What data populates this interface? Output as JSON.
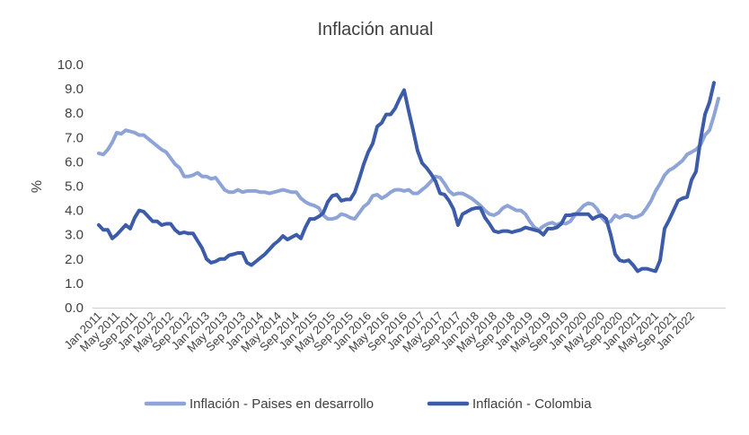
{
  "chart_data": {
    "type": "line",
    "title": "Inflación anual",
    "xlabel": "",
    "ylabel": "%",
    "ylim": [
      0,
      10
    ],
    "y_ticks": [
      "0.0",
      "1.0",
      "2.0",
      "3.0",
      "4.0",
      "5.0",
      "6.0",
      "7.0",
      "8.0",
      "9.0",
      "10.0"
    ],
    "x_tick_labels": [
      "Jan 2011",
      "May 2011",
      "Sep 2011",
      "Jan 2012",
      "May 2012",
      "Sep 2012",
      "Jan 2013",
      "May 2013",
      "Sep 2013",
      "Jan 2014",
      "May 2014",
      "Sep 2014",
      "Jan 2015",
      "May 2015",
      "Sep 2015",
      "Jan 2016",
      "May 2016",
      "Sep 2016",
      "Jan 2017",
      "May 2017",
      "Sep 2017",
      "Jan 2018",
      "May 2018",
      "Sep 2018",
      "Jan 2019",
      "May 2019",
      "Sep 2019",
      "Jan 2020",
      "May 2020",
      "Sep 2020",
      "Jan 2021",
      "May 2021",
      "Sep 2021",
      "Jan 2022"
    ],
    "x_start": "Jan 2011",
    "x_end": "Apr 2022",
    "grid": false,
    "legend_position": "bottom",
    "series": [
      {
        "name": "Inflación - Paises en desarrollo",
        "color": "#8FA4D6",
        "values": [
          6.35,
          6.3,
          6.5,
          6.8,
          7.2,
          7.15,
          7.3,
          7.25,
          7.2,
          7.1,
          7.1,
          6.95,
          6.8,
          6.65,
          6.5,
          6.4,
          6.15,
          5.9,
          5.75,
          5.4,
          5.4,
          5.45,
          5.55,
          5.4,
          5.4,
          5.3,
          5.35,
          5.1,
          4.85,
          4.75,
          4.75,
          4.85,
          4.75,
          4.8,
          4.8,
          4.8,
          4.75,
          4.75,
          4.7,
          4.75,
          4.8,
          4.85,
          4.8,
          4.75,
          4.75,
          4.5,
          4.35,
          4.25,
          4.2,
          4.1,
          3.8,
          3.65,
          3.65,
          3.7,
          3.85,
          3.8,
          3.7,
          3.65,
          3.9,
          4.15,
          4.3,
          4.6,
          4.65,
          4.5,
          4.6,
          4.75,
          4.85,
          4.85,
          4.8,
          4.85,
          4.7,
          4.7,
          4.85,
          5.0,
          5.2,
          5.4,
          5.35,
          5.1,
          4.8,
          4.65,
          4.7,
          4.7,
          4.6,
          4.5,
          4.35,
          4.2,
          4.0,
          3.85,
          3.8,
          3.9,
          4.1,
          4.2,
          4.1,
          4.0,
          4.0,
          3.85,
          3.55,
          3.3,
          3.2,
          3.35,
          3.45,
          3.5,
          3.4,
          3.5,
          3.45,
          3.55,
          3.8,
          4.0,
          4.2,
          4.3,
          4.25,
          4.05,
          3.7,
          3.5,
          3.55,
          3.8,
          3.7,
          3.8,
          3.8,
          3.7,
          3.75,
          3.85,
          4.1,
          4.4,
          4.8,
          5.1,
          5.45,
          5.65,
          5.75,
          5.9,
          6.05,
          6.3,
          6.4,
          6.5,
          6.7,
          7.1,
          7.3,
          7.9,
          8.6
        ]
      },
      {
        "name": "Inflación - Colombia",
        "color": "#3C5BA8",
        "values": [
          3.4,
          3.2,
          3.2,
          2.85,
          3.0,
          3.2,
          3.4,
          3.25,
          3.7,
          4.0,
          3.95,
          3.75,
          3.55,
          3.55,
          3.4,
          3.45,
          3.45,
          3.2,
          3.05,
          3.1,
          3.05,
          3.05,
          2.75,
          2.45,
          2.0,
          1.85,
          1.9,
          2.0,
          2.0,
          2.15,
          2.2,
          2.25,
          2.25,
          1.85,
          1.75,
          1.9,
          2.05,
          2.2,
          2.4,
          2.6,
          2.75,
          2.95,
          2.8,
          2.9,
          3.0,
          2.85,
          3.3,
          3.65,
          3.65,
          3.75,
          3.9,
          4.35,
          4.6,
          4.65,
          4.4,
          4.45,
          4.45,
          4.75,
          5.3,
          5.9,
          6.4,
          6.75,
          7.45,
          7.6,
          7.95,
          7.95,
          8.2,
          8.6,
          8.95,
          8.1,
          7.3,
          6.45,
          5.95,
          5.75,
          5.5,
          5.2,
          4.7,
          4.65,
          4.4,
          4.05,
          3.4,
          3.85,
          3.95,
          4.05,
          4.1,
          4.1,
          3.7,
          3.45,
          3.15,
          3.1,
          3.15,
          3.15,
          3.1,
          3.15,
          3.2,
          3.3,
          3.25,
          3.2,
          3.15,
          3.0,
          3.25,
          3.25,
          3.3,
          3.45,
          3.8,
          3.8,
          3.85,
          3.85,
          3.85,
          3.85,
          3.65,
          3.75,
          3.8,
          3.65,
          3.0,
          2.2,
          1.95,
          1.9,
          1.95,
          1.75,
          1.5,
          1.6,
          1.6,
          1.55,
          1.5,
          1.95,
          3.25,
          3.6,
          4.0,
          4.4,
          4.5,
          4.55,
          5.25,
          5.6,
          6.9,
          7.95,
          8.45,
          9.25
        ]
      }
    ]
  }
}
